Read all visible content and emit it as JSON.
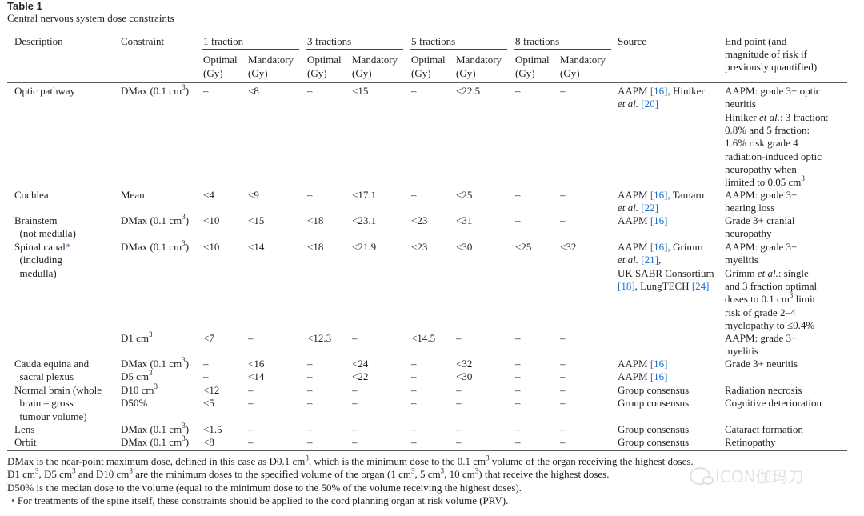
{
  "caption": {
    "label": "Table 1",
    "title": "Central nervous system dose constraints"
  },
  "header": {
    "description": "Description",
    "constraint": "Constraint",
    "groups": [
      "1 fraction",
      "3 fractions",
      "5 fractions",
      "8 fractions"
    ],
    "optimal": "Optimal",
    "mandatory": "Mandatory",
    "unit": "(Gy)",
    "source": "Source",
    "endpoint": [
      "End point (and",
      "magnitude of risk if",
      "previously quantified)"
    ]
  },
  "footnotes": {
    "dmax": "DMax is the near-point maximum dose, defined in this case as D0.1 cm³, which is the minimum dose to the 0.1 cm³ volume of the organ receiving the highest doses.",
    "dvol": "D1 cm³, D5 cm³ and D10 cm³ are the minimum doses to the specified volume of the organ (1 cm³, 5 cm³, 10 cm³) that receive the highest doses.",
    "d50": "D50% is the median dose to the volume (equal to the minimum dose to the 50% of the volume receiving the highest doses).",
    "spine": "For treatments of the spine itself, these constraints should be applied to the cord planning organ at risk volume (PRV)."
  },
  "watermark": "ICON伽玛刀"
}
